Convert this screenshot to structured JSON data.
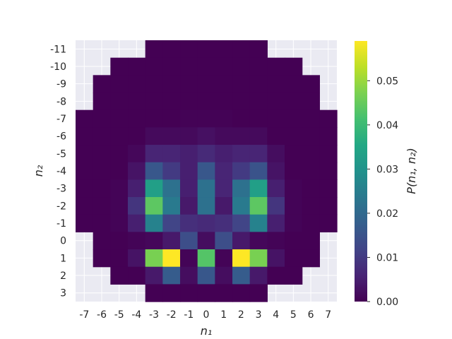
{
  "chart_data": {
    "type": "heatmap",
    "x": [
      -7,
      -6,
      -5,
      -4,
      -3,
      -2,
      -1,
      0,
      1,
      2,
      3,
      4,
      5,
      6,
      7
    ],
    "y": [
      -11,
      -10,
      -9,
      -8,
      -7,
      -6,
      -5,
      -4,
      -3,
      -2,
      -1,
      0,
      1,
      2,
      3
    ],
    "xlabel": "n₁",
    "ylabel": "n₂",
    "colorbar": {
      "label": "P(n₁, n₂)",
      "range": [
        0.0,
        0.059
      ],
      "ticks": [
        "0.00",
        "0.01",
        "0.02",
        "0.03",
        "0.04",
        "0.05"
      ],
      "colormap": "viridis"
    },
    "grid": true,
    "background_color": "#eaeaf2",
    "values": [
      [
        null,
        null,
        null,
        null,
        0.0,
        0.0,
        0.0,
        0.0,
        0.0,
        0.0,
        0.0,
        null,
        null,
        null,
        null
      ],
      [
        null,
        null,
        0.0,
        0.0,
        0.0,
        0.0,
        0.0,
        0.0,
        0.0,
        0.0,
        0.0,
        0.0,
        0.0,
        null,
        null
      ],
      [
        null,
        0.0,
        0.0,
        0.0,
        0.0,
        0.0,
        0.0,
        0.0,
        0.0,
        0.0,
        0.0,
        0.0,
        0.0,
        0.0,
        null
      ],
      [
        null,
        0.0,
        0.0,
        0.0,
        0.0,
        0.0,
        0.0,
        0.0,
        0.0,
        0.0,
        0.0,
        0.0,
        0.0,
        0.0,
        null
      ],
      [
        0.0,
        0.0,
        0.0,
        0.0,
        0.0,
        0.0,
        0.0003,
        0.0003,
        0.0003,
        0.0,
        0.0,
        0.0,
        0.0,
        0.0,
        0.0
      ],
      [
        0.0,
        0.0,
        0.0,
        0.0,
        0.0015,
        0.0015,
        0.0015,
        0.0025,
        0.0015,
        0.0015,
        0.0015,
        0.0,
        0.0,
        0.0,
        0.0
      ],
      [
        0.0,
        0.0,
        0.0,
        0.001,
        0.006,
        0.006,
        0.005,
        0.007,
        0.005,
        0.006,
        0.006,
        0.002,
        0.0,
        0.0,
        0.0
      ],
      [
        0.0,
        0.0,
        0.0,
        0.003,
        0.016,
        0.01,
        0.005,
        0.016,
        0.006,
        0.01,
        0.015,
        0.003,
        0.0,
        0.0,
        0.0
      ],
      [
        0.0,
        0.0,
        0.0005,
        0.005,
        0.033,
        0.022,
        0.005,
        0.022,
        0.006,
        0.022,
        0.033,
        0.005,
        0.0005,
        0.0,
        0.0
      ],
      [
        0.0,
        0.0,
        0.0005,
        0.009,
        0.044,
        0.024,
        0.004,
        0.022,
        0.004,
        0.024,
        0.044,
        0.009,
        0.0005,
        0.0,
        0.0
      ],
      [
        0.0,
        0.0,
        0.0005,
        0.005,
        0.026,
        0.012,
        0.008,
        0.007,
        0.008,
        0.012,
        0.026,
        0.005,
        0.0005,
        0.0,
        0.0
      ],
      [
        null,
        0.0,
        0.0,
        0.0005,
        0.001,
        0.004,
        0.014,
        0.002,
        0.014,
        0.004,
        0.001,
        0.0005,
        0.0,
        0.0,
        null
      ],
      [
        null,
        0.0,
        0.0,
        0.003,
        0.047,
        0.059,
        0.0005,
        0.043,
        0.0005,
        0.059,
        0.047,
        0.003,
        0.0,
        0.0,
        null
      ],
      [
        null,
        null,
        0.0,
        0.0,
        0.004,
        0.017,
        0.002,
        0.016,
        0.002,
        0.017,
        0.004,
        0.0,
        0.0,
        null,
        null
      ],
      [
        null,
        null,
        null,
        null,
        0.0,
        0.0,
        0.0,
        0.0,
        0.0,
        0.0,
        0.0,
        null,
        null,
        null,
        null
      ]
    ]
  }
}
